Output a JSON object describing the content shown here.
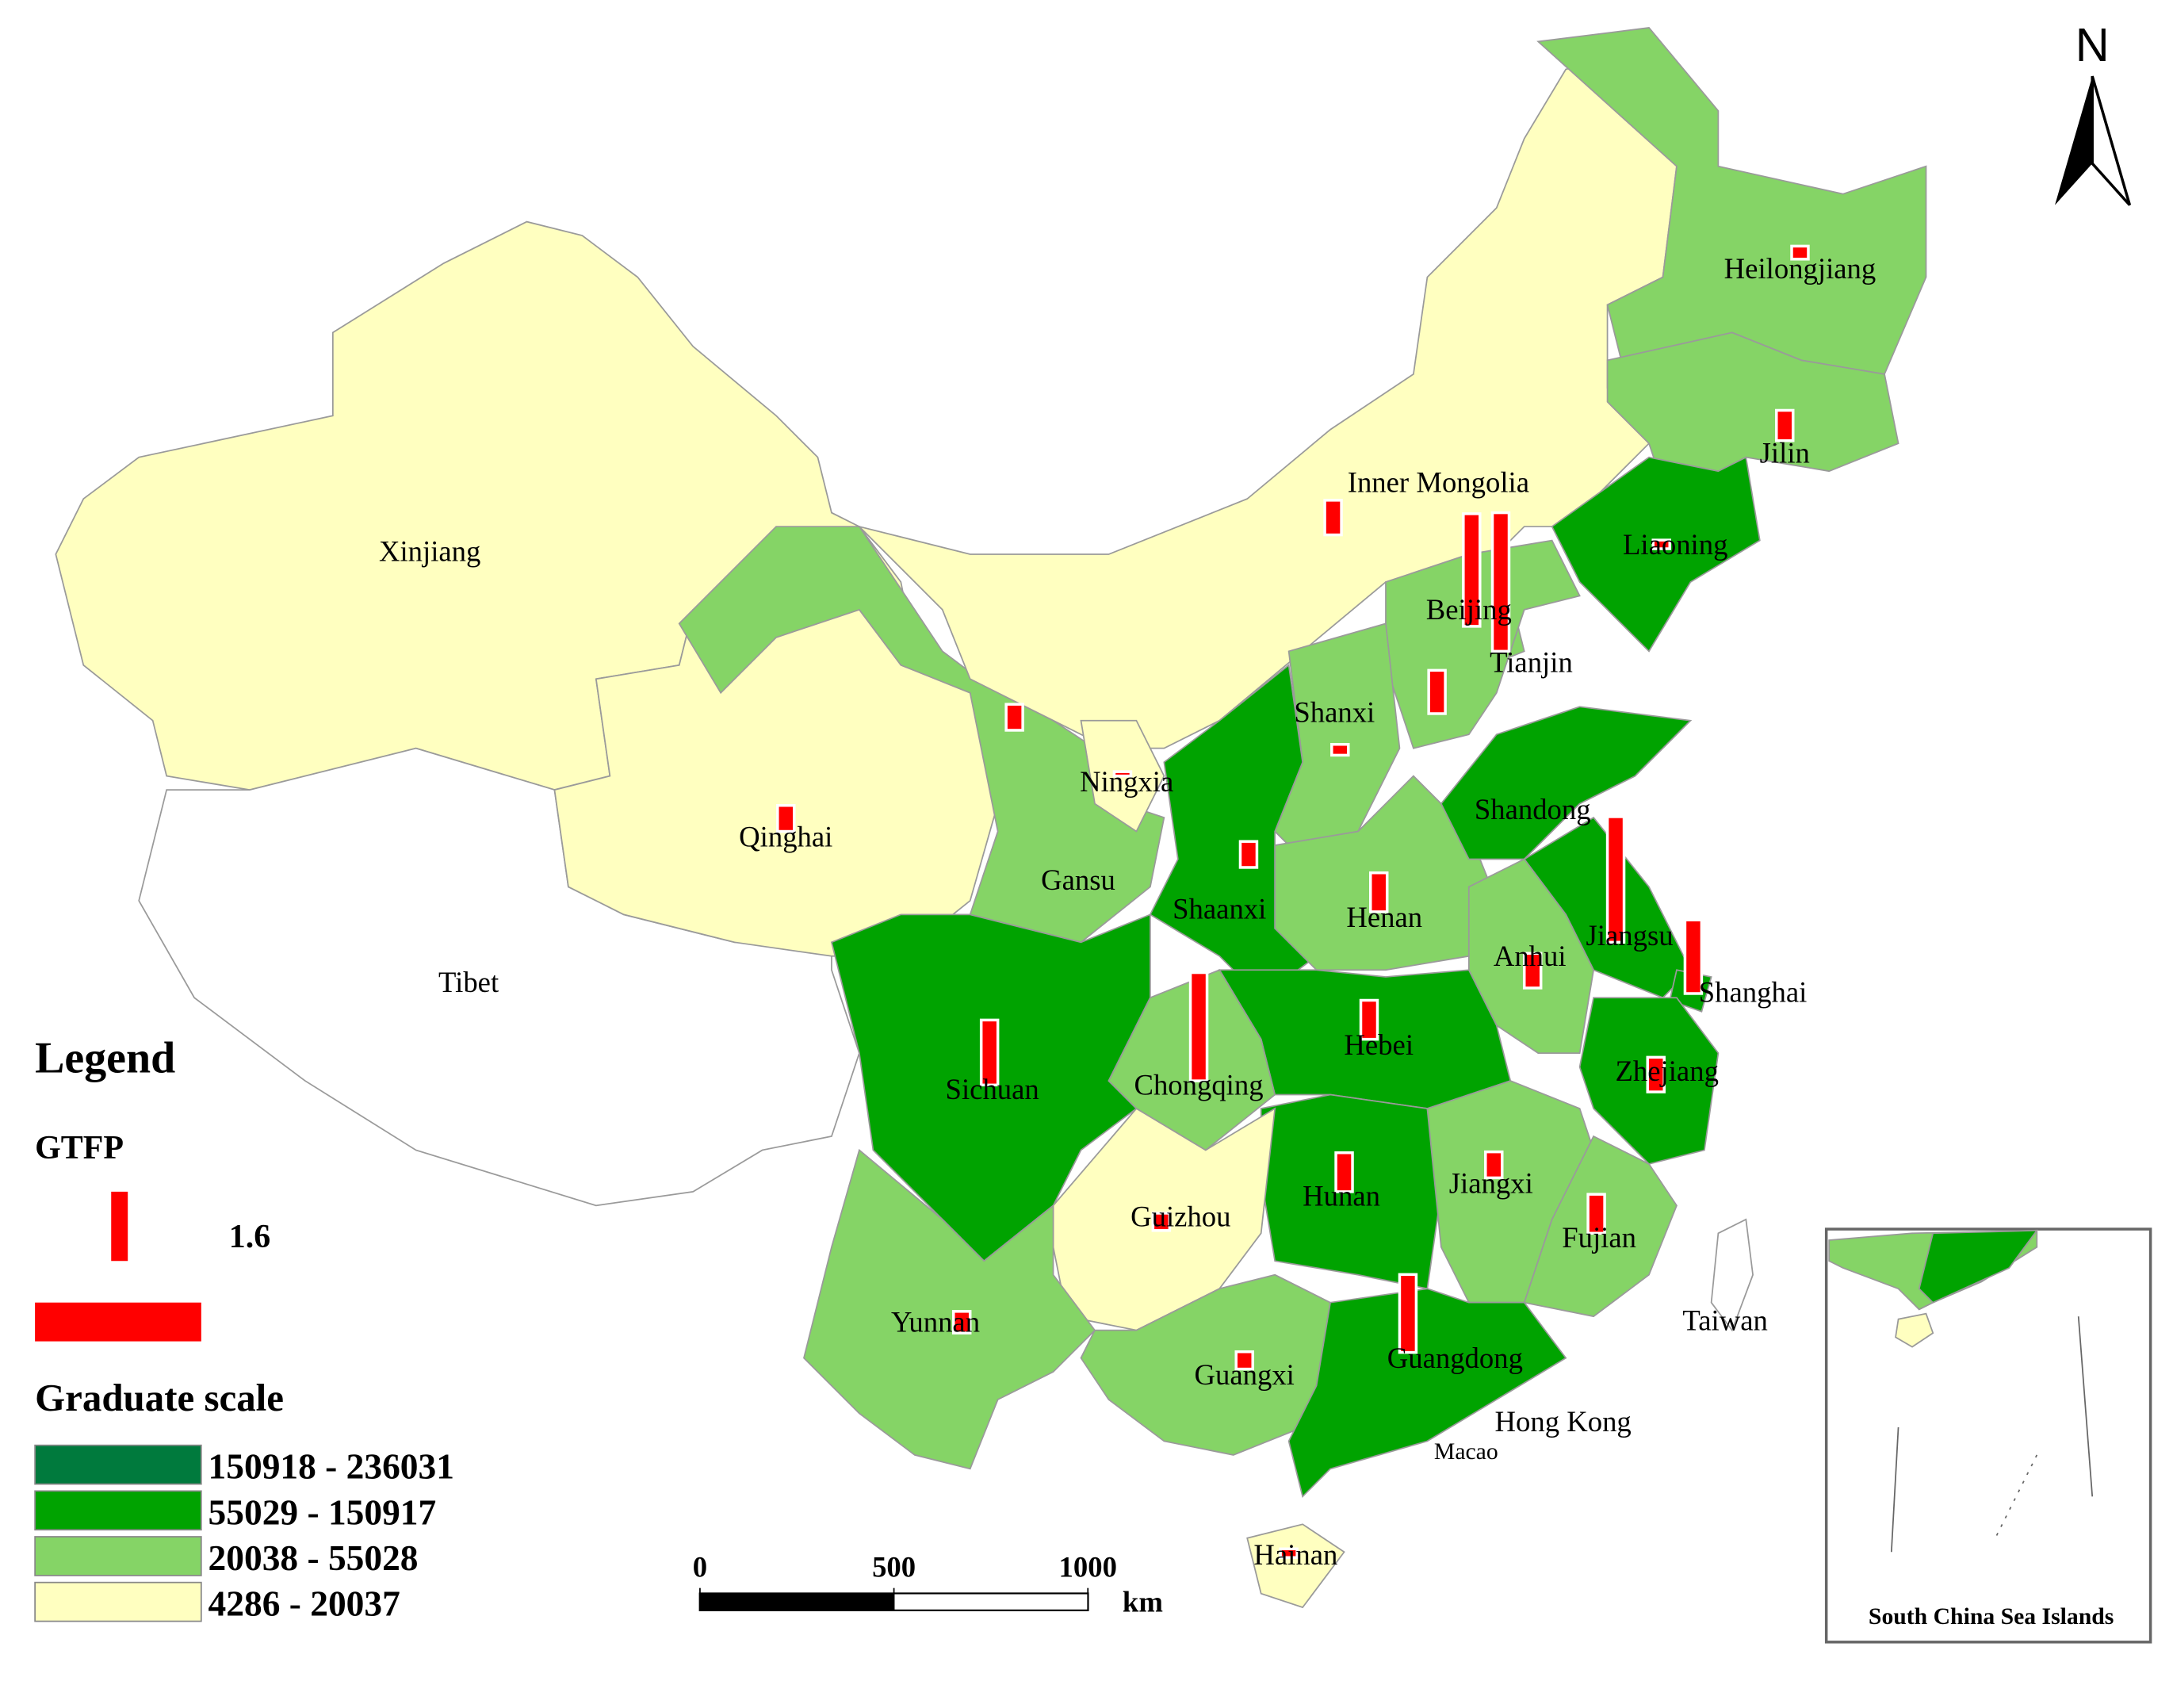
{
  "north": "N",
  "legend": {
    "title": "Legend",
    "gtfp_title": "GTFP",
    "gtfp_value": 1.6,
    "scale_title": "Graduate scale",
    "classes": [
      {
        "label": "150918 - 236031",
        "color": "#007a3d"
      },
      {
        "label": "55029 - 150917",
        "color": "#00a300"
      },
      {
        "label": "20038 - 55028",
        "color": "#85d466"
      },
      {
        "label": "4286 - 20037",
        "color": "#ffffc0"
      }
    ]
  },
  "scale_bar": {
    "ticks": [
      0,
      500,
      1000
    ],
    "unit": "km"
  },
  "inset_title": "South China Sea Islands",
  "other_labels": [
    "Hong Kong",
    "Macao"
  ],
  "provinces": [
    {
      "label": "Xinjiang",
      "color": "#ffffc0",
      "gtfp": null
    },
    {
      "label": "Tibet",
      "color": "#ffffff",
      "gtfp": null
    },
    {
      "label": "Qinghai",
      "color": "#ffffc0",
      "gtfp": 0.6
    },
    {
      "label": "Gansu",
      "color": "#85d466",
      "gtfp": 0.6
    },
    {
      "label": "Inner Mongolia",
      "color": "#ffffc0",
      "gtfp": 0.8
    },
    {
      "label": "Heilongjiang",
      "color": "#85d466",
      "gtfp": 0.3
    },
    {
      "label": "Jilin",
      "color": "#85d466",
      "gtfp": 0.7
    },
    {
      "label": "Liaoning",
      "color": "#00a300",
      "gtfp": 0.2
    },
    {
      "label": "Beijing",
      "color": "#007a3d",
      "gtfp": 2.6
    },
    {
      "label": "Tianjin",
      "color": "#85d466",
      "gtfp": 3.2
    },
    {
      "label": null,
      "color": "#85d466",
      "gtfp": 1.0
    },
    {
      "label": "Shanxi",
      "color": "#85d466",
      "gtfp": 0.25
    },
    {
      "label": "Ningxia",
      "color": "#ffffc0",
      "gtfp": 0.1
    },
    {
      "label": "Shaanxi",
      "color": "#00a300",
      "gtfp": 0.6
    },
    {
      "label": "Henan",
      "color": "#85d466",
      "gtfp": 0.9
    },
    {
      "label": "Shandong",
      "color": "#00a300",
      "gtfp": null
    },
    {
      "label": "Jiangsu",
      "color": "#00a300",
      "gtfp": 2.9
    },
    {
      "label": "Shanghai",
      "color": "#00a300",
      "gtfp": 1.7
    },
    {
      "label": "Anhui",
      "color": "#85d466",
      "gtfp": 0.8
    },
    {
      "label": "Hebei",
      "color": "#00a300",
      "gtfp": 0.9
    },
    {
      "label": "Sichuan",
      "color": "#00a300",
      "gtfp": 1.5
    },
    {
      "label": "Chongqing",
      "color": "#85d466",
      "gtfp": 2.5
    },
    {
      "label": "Zhejiang",
      "color": "#00a300",
      "gtfp": 0.8
    },
    {
      "label": "Hunan",
      "color": "#00a300",
      "gtfp": 0.9
    },
    {
      "label": "Jiangxi",
      "color": "#85d466",
      "gtfp": 0.6
    },
    {
      "label": "Fujian",
      "color": "#85d466",
      "gtfp": 0.9
    },
    {
      "label": "Guizhou",
      "color": "#ffffc0",
      "gtfp": 0.4
    },
    {
      "label": "Yunnan",
      "color": "#85d466",
      "gtfp": 0.5
    },
    {
      "label": "Guangxi",
      "color": "#85d466",
      "gtfp": 0.4
    },
    {
      "label": "Guangdong",
      "color": "#00a300",
      "gtfp": 1.8
    },
    {
      "label": "Hainan",
      "color": "#ffffc0",
      "gtfp": 0.2
    },
    {
      "label": "Taiwan",
      "color": "#ffffff",
      "gtfp": null
    }
  ]
}
